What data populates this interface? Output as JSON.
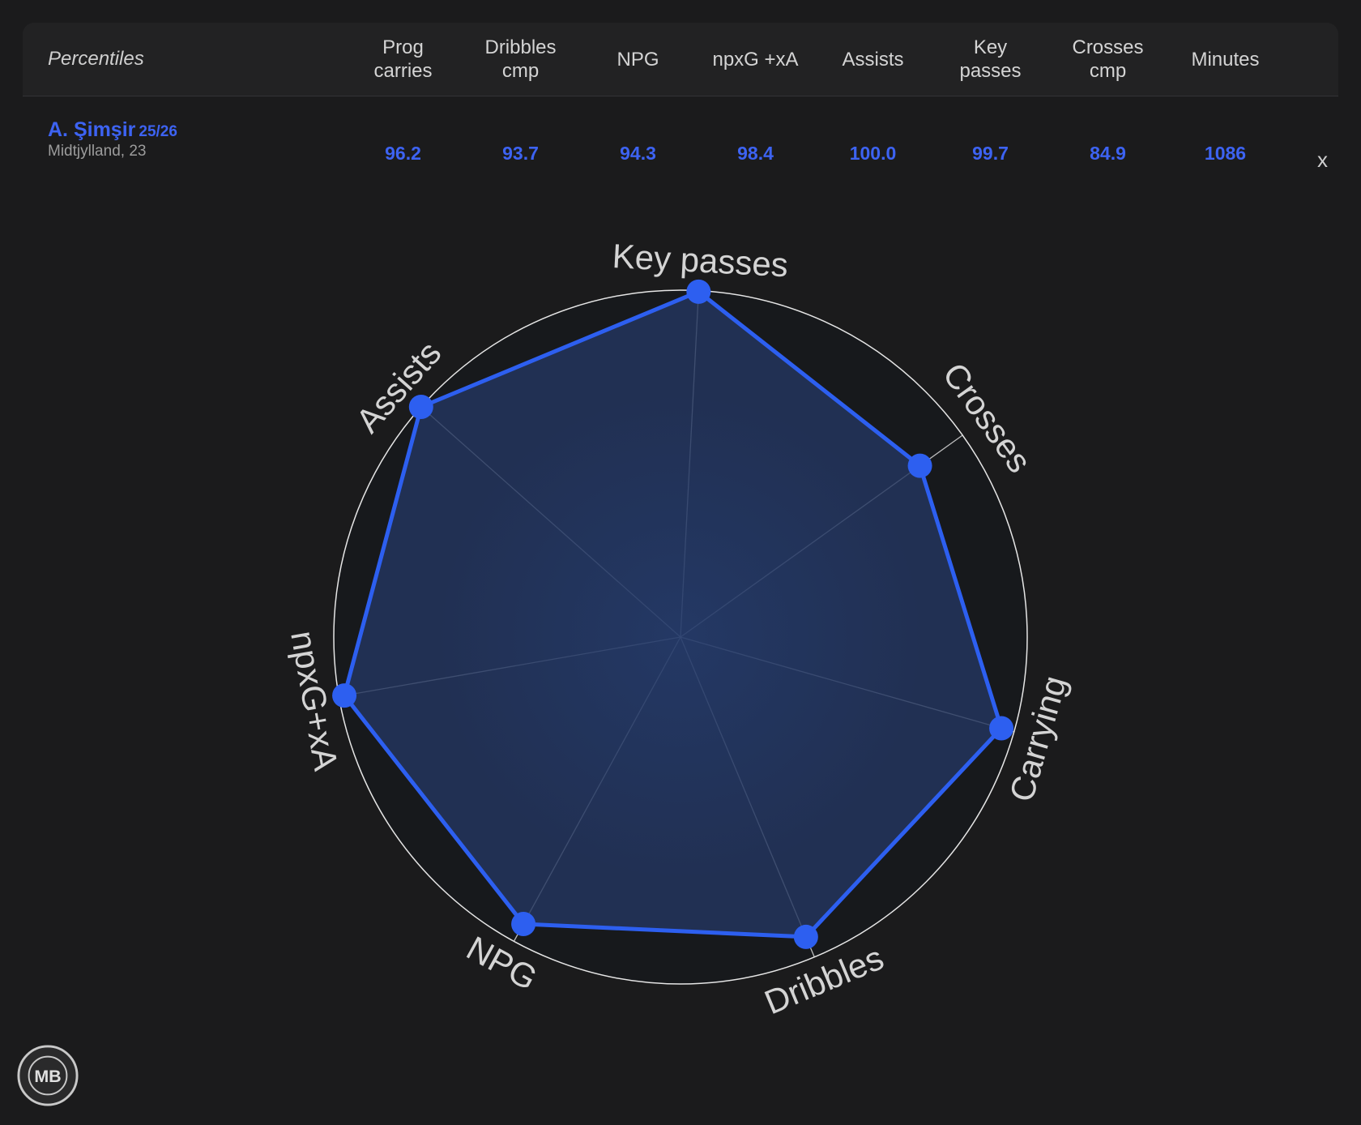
{
  "table": {
    "corner_label": "Percentiles",
    "columns": [
      [
        "Prog",
        "carries"
      ],
      [
        "Dribbles",
        "cmp"
      ],
      [
        "NPG"
      ],
      [
        "npxG +xA"
      ],
      [
        "Assists"
      ],
      [
        "Key",
        "passes"
      ],
      [
        "Crosses",
        "cmp"
      ],
      [
        "Minutes"
      ]
    ],
    "player": {
      "name": "A. Şimşir",
      "season": "25/26",
      "meta": "Midtjylland, 23",
      "values": [
        "96.2",
        "93.7",
        "94.3",
        "98.4",
        "100.0",
        "99.7",
        "84.9",
        "1086"
      ],
      "remove_label": "x"
    }
  },
  "chart_data": {
    "type": "radar",
    "axes": [
      "Key passes",
      "Crosses",
      "Carrying",
      "Dribbles",
      "NPG",
      "npxG+xA",
      "Assists"
    ],
    "series": [
      {
        "values": [
          99.7,
          84.9,
          96.2,
          93.7,
          94.3,
          98.4,
          100.0
        ],
        "color": "#2d5ff0"
      }
    ],
    "range": [
      0,
      100
    ]
  },
  "colors": {
    "background": "#1b1b1c",
    "accent": "#2d5ff0",
    "fill": "#23365f",
    "grid": "#e6e6e6"
  },
  "logo": {
    "text": "MB",
    "icon": "mb-badge-icon"
  }
}
